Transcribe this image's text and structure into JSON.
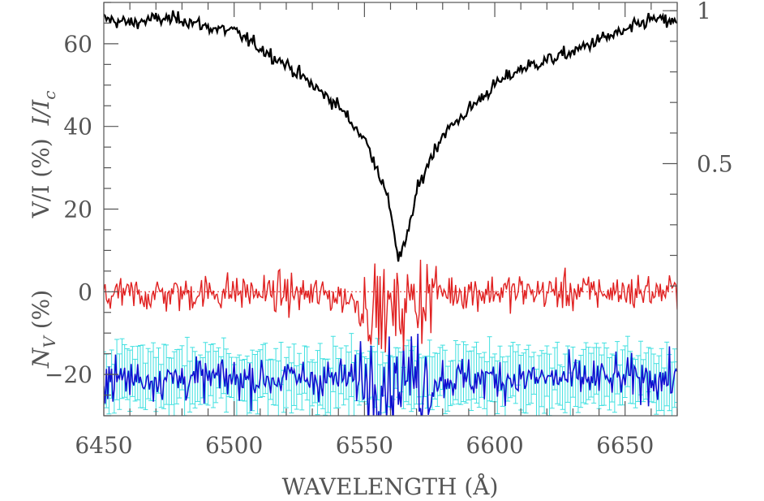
{
  "chart_data": {
    "type": "line",
    "xlabel": "WAVELENGTH (Å)",
    "ylabel_left": {
      "upper": {
        "parts": [
          "V/I (%)",
          "I/I",
          "c"
        ]
      },
      "lower": {
        "parts": [
          "N",
          "V",
          " (%)"
        ]
      }
    },
    "xlim": [
      6450,
      6670
    ],
    "ylim": [
      -30,
      70
    ],
    "x_ticks": [
      6450,
      6500,
      6550,
      6600,
      6650
    ],
    "x_tick_labels": [
      "6450",
      "6500",
      "6550",
      "6600",
      "6650"
    ],
    "y_ticks": [
      -20,
      0,
      20,
      40,
      60
    ],
    "y_tick_labels": [
      "−20",
      "0",
      "20",
      "40",
      "60"
    ],
    "y2_ticks": [
      0.5,
      1.0
    ],
    "y2_tick_labels": [
      "0.5",
      "1"
    ],
    "y2_mapping": {
      "at_left_minus6": 0,
      "at_left_68": 1
    },
    "zero_reference_line": {
      "y": 0,
      "style": "dotted",
      "color": "#e02020"
    },
    "series": [
      {
        "role": "stokes_I",
        "color": "#000000",
        "x": [
          6450,
          6460,
          6470,
          6480,
          6490,
          6500,
          6510,
          6520,
          6530,
          6540,
          6550,
          6555,
          6560,
          6563,
          6566,
          6570,
          6575,
          6580,
          6590,
          6600,
          6610,
          6620,
          6630,
          6640,
          6650,
          6660,
          6670
        ],
        "y": [
          66,
          65,
          66,
          66,
          64,
          63,
          59,
          55,
          50,
          45,
          37,
          30,
          20,
          8,
          12,
          24,
          32,
          38,
          44,
          50,
          54,
          56,
          58,
          61,
          63,
          66,
          65
        ],
        "noise": 1.2
      },
      {
        "role": "stokes_V",
        "color": "#e02020",
        "x": [
          6450,
          6500,
          6540,
          6555,
          6562,
          6568,
          6580,
          6600,
          6670
        ],
        "y": [
          -1,
          0,
          -1,
          -4,
          -5,
          -2,
          0,
          0,
          0
        ],
        "noise": 3.2
      },
      {
        "role": "null_N",
        "color": "#1010d0",
        "x": [
          6450,
          6500,
          6550,
          6565,
          6580,
          6670
        ],
        "y": [
          -21,
          -21,
          -21,
          -21,
          -21,
          -21
        ],
        "noise": 3.5
      },
      {
        "role": "null_N_errorbars",
        "color": "#40e0e0",
        "x": [
          6450,
          6670
        ],
        "y": [
          -21,
          -21
        ],
        "error": 6
      }
    ]
  }
}
